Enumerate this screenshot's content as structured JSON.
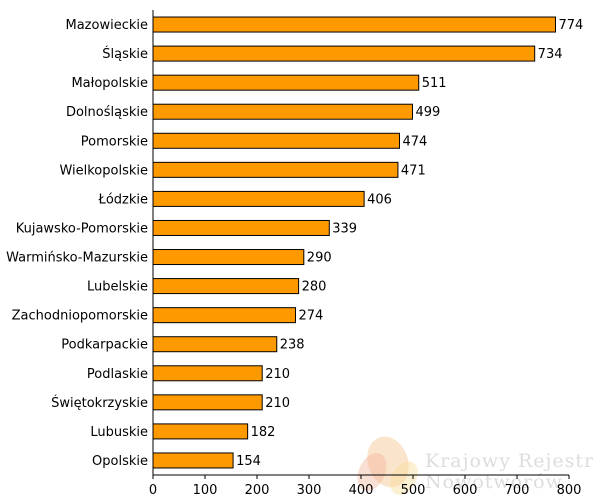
{
  "chart_data": {
    "type": "bar",
    "orientation": "horizontal",
    "categories": [
      "Mazowieckie",
      "Śląskie",
      "Małopolskie",
      "Dolnośląskie",
      "Pomorskie",
      "Wielkopolskie",
      "Łódzkie",
      "Kujawsko-Pomorskie",
      "Warmińsko-Mazurskie",
      "Lubelskie",
      "Zachodniopomorskie",
      "Podkarpackie",
      "Podlaskie",
      "Świętokrzyskie",
      "Lubuskie",
      "Opolskie"
    ],
    "values": [
      774,
      734,
      511,
      499,
      474,
      471,
      406,
      339,
      290,
      280,
      274,
      238,
      210,
      210,
      182,
      154
    ],
    "title": "",
    "xlabel": "",
    "ylabel": "",
    "xlim": [
      0,
      800
    ],
    "xticks": [
      0,
      100,
      200,
      300,
      400,
      500,
      600,
      700,
      800
    ],
    "grid": false,
    "bar_color": "#ff9900",
    "bar_edge_color": "#000000"
  },
  "watermark": {
    "line1": "Krajowy Rejestr",
    "line2": "Nowotworów",
    "colors": [
      "#f6c48f",
      "#f3ae96",
      "#f7dd9a"
    ]
  }
}
